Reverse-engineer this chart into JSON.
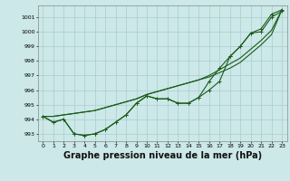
{
  "background_color": "#cce8e8",
  "grid_color": "#aacccc",
  "line_color": "#1a5c1a",
  "xlabel": "Graphe pression niveau de la mer (hPa)",
  "xlabel_fontsize": 7.0,
  "ylim": [
    992.5,
    1001.8
  ],
  "yticks": [
    993,
    994,
    995,
    996,
    997,
    998,
    999,
    1000,
    1001
  ],
  "xlim": [
    -0.5,
    23.5
  ],
  "xticks": [
    0,
    1,
    2,
    3,
    4,
    5,
    6,
    7,
    8,
    9,
    10,
    11,
    12,
    13,
    14,
    15,
    16,
    17,
    18,
    19,
    20,
    21,
    22,
    23
  ],
  "series": [
    [
      994.2,
      993.8,
      994.0,
      993.0,
      992.9,
      993.0,
      993.3,
      993.8,
      994.3,
      995.1,
      995.6,
      995.4,
      995.4,
      995.1,
      995.1,
      995.5,
      996.0,
      996.6,
      998.3,
      999.0,
      999.9,
      1000.0,
      1001.0,
      1001.4
    ],
    [
      994.2,
      993.8,
      994.0,
      993.0,
      992.9,
      993.0,
      993.3,
      993.8,
      994.3,
      995.1,
      995.6,
      995.4,
      995.4,
      995.1,
      995.1,
      995.5,
      996.6,
      997.5,
      998.3,
      999.0,
      999.9,
      1000.2,
      1001.2,
      1001.5
    ],
    [
      994.2,
      994.2,
      994.3,
      994.4,
      994.5,
      994.6,
      994.8,
      995.0,
      995.2,
      995.4,
      995.7,
      995.9,
      996.1,
      996.3,
      996.5,
      996.7,
      996.9,
      997.2,
      997.5,
      997.9,
      998.5,
      999.1,
      999.8,
      1001.5
    ],
    [
      994.2,
      994.2,
      994.3,
      994.4,
      994.5,
      994.6,
      994.8,
      995.0,
      995.2,
      995.4,
      995.7,
      995.9,
      996.1,
      996.3,
      996.5,
      996.7,
      997.0,
      997.4,
      997.8,
      998.2,
      998.8,
      999.4,
      1000.1,
      1001.5
    ]
  ],
  "marker": "+",
  "markersize": 3,
  "linewidth": 0.8,
  "tick_fontsize": 4.5
}
